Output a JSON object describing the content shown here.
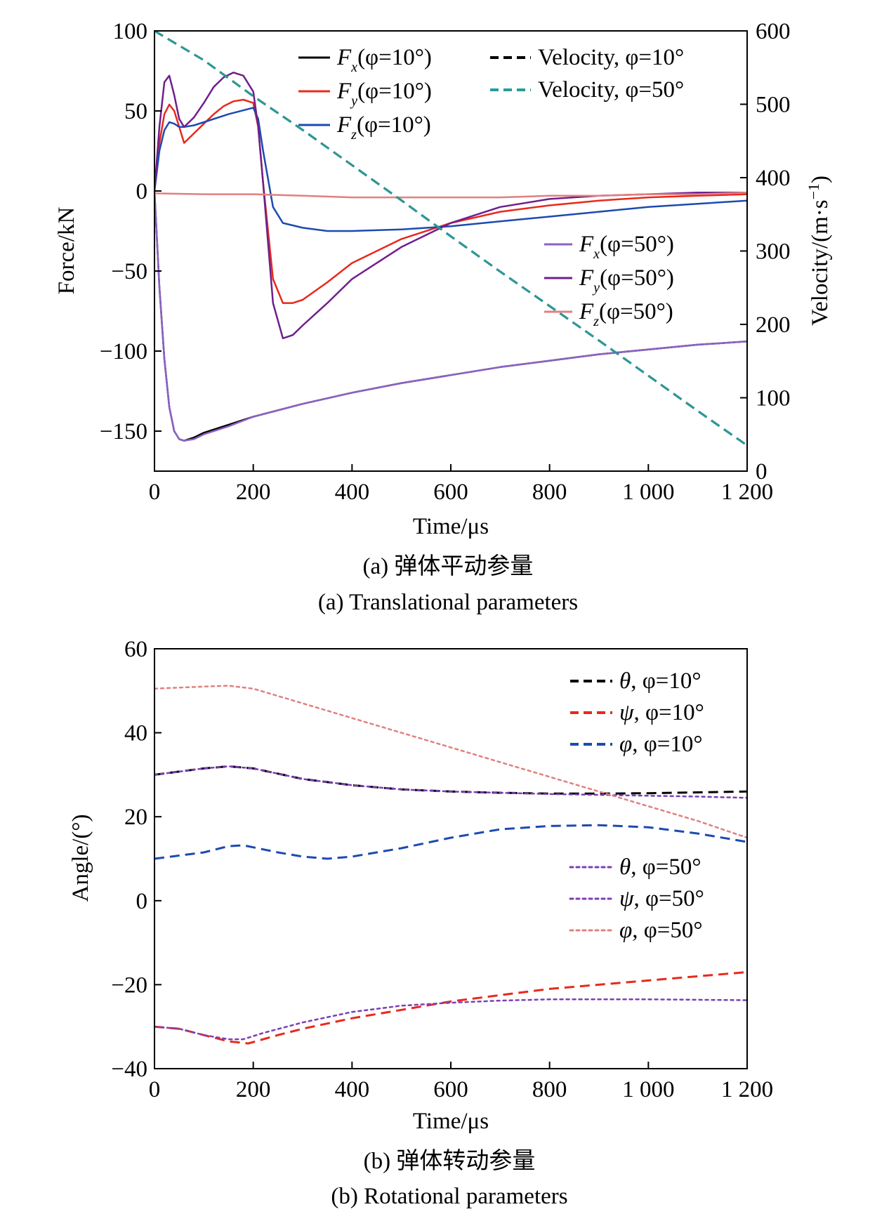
{
  "chart_data": [
    {
      "type": "line",
      "xlabel": "Time/μs",
      "ylabel": "Force/kN",
      "y2label": "Velocity/(m·s⁻¹)",
      "xlim": [
        0,
        1200
      ],
      "ylim": [
        -175,
        100
      ],
      "y2lim": [
        0,
        600
      ],
      "xticks": [
        "0",
        "200",
        "400",
        "600",
        "800",
        "1 000",
        "1 200"
      ],
      "yticks": [
        "100",
        "50",
        "0",
        "−50",
        "−100",
        "−150"
      ],
      "y2ticks": [
        "600",
        "500",
        "400",
        "300",
        "200",
        "100",
        "0"
      ],
      "caption_cn": "(a) 弹体平动参量",
      "caption_en": "(a) Translational parameters",
      "series": [
        {
          "key": "fx10",
          "legend_main": "F",
          "legend_sub": "x",
          "legend_suffix": "(φ=10°)",
          "color": "#000000",
          "dash": "solid",
          "axis": "left",
          "x": [
            0,
            10,
            20,
            30,
            40,
            50,
            60,
            80,
            100,
            150,
            200,
            300,
            400,
            500,
            600,
            700,
            800,
            900,
            1000,
            1100,
            1200
          ],
          "y": [
            0,
            -60,
            -105,
            -135,
            -150,
            -155,
            -156,
            -154,
            -151,
            -146,
            -141,
            -133,
            -126,
            -120,
            -115,
            -110,
            -106,
            -102,
            -99,
            -96,
            -94
          ]
        },
        {
          "key": "fy10",
          "legend_main": "F",
          "legend_sub": "y",
          "legend_suffix": "(φ=10°)",
          "color": "#e8291c",
          "dash": "solid",
          "axis": "left",
          "x": [
            0,
            10,
            20,
            30,
            40,
            50,
            60,
            80,
            100,
            120,
            140,
            160,
            180,
            200,
            210,
            220,
            240,
            260,
            280,
            300,
            350,
            400,
            500,
            600,
            700,
            800,
            900,
            1000,
            1100,
            1200
          ],
          "y": [
            0,
            30,
            48,
            54,
            50,
            40,
            30,
            36,
            42,
            48,
            53,
            56,
            57,
            55,
            40,
            5,
            -55,
            -70,
            -70,
            -68,
            -57,
            -45,
            -30,
            -20,
            -13,
            -9,
            -6,
            -4,
            -3,
            -2
          ]
        },
        {
          "key": "fz10",
          "legend_main": "F",
          "legend_sub": "z",
          "legend_suffix": "(φ=10°)",
          "color": "#1c4bb0",
          "dash": "solid",
          "axis": "left",
          "x": [
            0,
            10,
            20,
            30,
            40,
            50,
            60,
            80,
            100,
            150,
            200,
            210,
            220,
            240,
            260,
            300,
            350,
            400,
            500,
            600,
            700,
            800,
            900,
            1000,
            1100,
            1200
          ],
          "y": [
            0,
            25,
            38,
            43,
            42,
            40,
            40,
            41,
            43,
            48,
            52,
            45,
            25,
            -10,
            -20,
            -23,
            -25,
            -25,
            -24,
            -22,
            -19,
            -16,
            -13,
            -10,
            -8,
            -6
          ]
        },
        {
          "key": "fx50",
          "legend_main": "F",
          "legend_sub": "x",
          "legend_suffix": "(φ=50°)",
          "color": "#8b62c4",
          "dash": "solid",
          "axis": "left",
          "x": [
            0,
            10,
            20,
            30,
            40,
            50,
            60,
            80,
            100,
            150,
            200,
            300,
            400,
            500,
            600,
            700,
            800,
            900,
            1000,
            1100,
            1200
          ],
          "y": [
            0,
            -60,
            -105,
            -135,
            -150,
            -155,
            -156,
            -155,
            -152,
            -147,
            -141,
            -133,
            -126,
            -120,
            -115,
            -110,
            -106,
            -102,
            -99,
            -96,
            -94
          ]
        },
        {
          "key": "fy50",
          "legend_main": "F",
          "legend_sub": "y",
          "legend_suffix": "(φ=50°)",
          "color": "#6f1f8c",
          "dash": "solid",
          "axis": "left",
          "x": [
            0,
            10,
            20,
            30,
            40,
            50,
            60,
            80,
            100,
            120,
            140,
            160,
            180,
            200,
            210,
            220,
            240,
            260,
            280,
            300,
            350,
            400,
            500,
            600,
            700,
            800,
            900,
            1000,
            1100,
            1200
          ],
          "y": [
            0,
            40,
            68,
            72,
            60,
            45,
            40,
            46,
            55,
            65,
            71,
            74,
            72,
            62,
            40,
            5,
            -70,
            -92,
            -90,
            -84,
            -70,
            -55,
            -35,
            -20,
            -10,
            -5,
            -3,
            -2,
            -1,
            -1
          ]
        },
        {
          "key": "fz50",
          "legend_main": "F",
          "legend_sub": "z",
          "legend_suffix": "(φ=50°)",
          "color": "#e08080",
          "dash": "solid",
          "axis": "left",
          "x": [
            0,
            100,
            200,
            300,
            400,
            500,
            600,
            700,
            800,
            900,
            1000,
            1100,
            1200
          ],
          "y": [
            -1.5,
            -2,
            -2,
            -3,
            -4,
            -4,
            -4,
            -4,
            -3,
            -3,
            -2,
            -2,
            -1
          ]
        },
        {
          "key": "v10",
          "legend_main": "Velocity",
          "legend_sub": "",
          "legend_suffix": ", φ=10°",
          "color": "#000000",
          "dash": "dashed",
          "axis": "right",
          "x": [
            0,
            100,
            200,
            300,
            400,
            500,
            600,
            700,
            800,
            900,
            1000,
            1100,
            1200
          ],
          "y": [
            600,
            560,
            511,
            465,
            417,
            369,
            320,
            272,
            225,
            178,
            130,
            82,
            35
          ]
        },
        {
          "key": "v50",
          "legend_main": "Velocity",
          "legend_sub": "",
          "legend_suffix": ", φ=50°",
          "color": "#2a9a9a",
          "dash": "dashed",
          "axis": "right",
          "x": [
            0,
            100,
            200,
            300,
            400,
            500,
            600,
            700,
            800,
            900,
            1000,
            1100,
            1200
          ],
          "y": [
            600,
            560,
            511,
            465,
            417,
            369,
            320,
            272,
            225,
            178,
            130,
            82,
            35
          ]
        }
      ]
    },
    {
      "type": "line",
      "xlabel": "Time/μs",
      "ylabel": "Angle/(°)",
      "xlim": [
        0,
        1200
      ],
      "ylim": [
        -40,
        60
      ],
      "xticks": [
        "0",
        "200",
        "400",
        "600",
        "800",
        "1 000",
        "1 200"
      ],
      "yticks": [
        "60",
        "40",
        "20",
        "0",
        "−20",
        "−40"
      ],
      "caption_cn": "(b) 弹体转动参量",
      "caption_en": "(b) Rotational parameters",
      "series": [
        {
          "key": "theta10",
          "legend_main": "θ",
          "legend_suffix": ", φ=10°",
          "color": "#000000",
          "dash": "dashed",
          "x": [
            0,
            100,
            150,
            200,
            300,
            400,
            500,
            600,
            700,
            800,
            900,
            1000,
            1100,
            1200
          ],
          "y": [
            30,
            31.5,
            32,
            31.5,
            29,
            27.5,
            26.5,
            26,
            25.7,
            25.5,
            25.5,
            25.6,
            25.8,
            26
          ]
        },
        {
          "key": "psi10",
          "legend_main": "ψ",
          "legend_suffix": ", φ=10°",
          "color": "#e8291c",
          "dash": "dashed",
          "x": [
            0,
            50,
            100,
            150,
            190,
            250,
            300,
            400,
            500,
            600,
            700,
            800,
            900,
            1000,
            1100,
            1200
          ],
          "y": [
            -30,
            -30.5,
            -32,
            -33.5,
            -34,
            -32,
            -30.5,
            -28,
            -26,
            -24,
            -22.5,
            -21,
            -20,
            -19,
            -18,
            -17
          ]
        },
        {
          "key": "phi10",
          "legend_main": "φ",
          "legend_suffix": ", φ=10°",
          "color": "#1c4bb0",
          "dash": "dashed",
          "x": [
            0,
            100,
            150,
            180,
            250,
            300,
            350,
            400,
            500,
            600,
            700,
            800,
            900,
            1000,
            1100,
            1200
          ],
          "y": [
            10,
            11.5,
            13,
            13.2,
            11.5,
            10.5,
            10,
            10.5,
            12.5,
            15,
            17,
            17.8,
            18,
            17.5,
            16,
            14
          ]
        },
        {
          "key": "theta50",
          "legend_main": "θ",
          "legend_suffix": ", φ=50°",
          "color": "#7b3fb5",
          "dash": "dotted",
          "x": [
            0,
            100,
            150,
            200,
            300,
            400,
            500,
            600,
            700,
            800,
            900,
            1000,
            1100,
            1200
          ],
          "y": [
            30,
            31.5,
            32,
            31.5,
            29,
            27.5,
            26.5,
            26,
            25.7,
            25.4,
            25.2,
            25,
            24.8,
            24.5
          ]
        },
        {
          "key": "psi50",
          "legend_main": "ψ",
          "legend_suffix": ", φ=50°",
          "color": "#7b3fb5",
          "dash": "dotted",
          "x": [
            0,
            50,
            100,
            150,
            180,
            220,
            300,
            400,
            500,
            600,
            700,
            800,
            900,
            1000,
            1100,
            1200
          ],
          "y": [
            -30,
            -30.5,
            -32,
            -33,
            -33,
            -31.5,
            -29,
            -26.5,
            -25,
            -24.3,
            -23.8,
            -23.5,
            -23.5,
            -23.5,
            -23.6,
            -23.7
          ]
        },
        {
          "key": "phi50",
          "legend_main": "φ",
          "legend_suffix": ", φ=50°",
          "color": "#e08080",
          "dash": "dotted",
          "x": [
            0,
            100,
            150,
            200,
            300,
            400,
            500,
            600,
            700,
            800,
            900,
            1000,
            1100,
            1200
          ],
          "y": [
            50.5,
            51,
            51.2,
            50.5,
            47,
            43.5,
            40,
            36.5,
            33,
            29.5,
            26,
            22.5,
            19,
            15
          ]
        }
      ]
    }
  ]
}
